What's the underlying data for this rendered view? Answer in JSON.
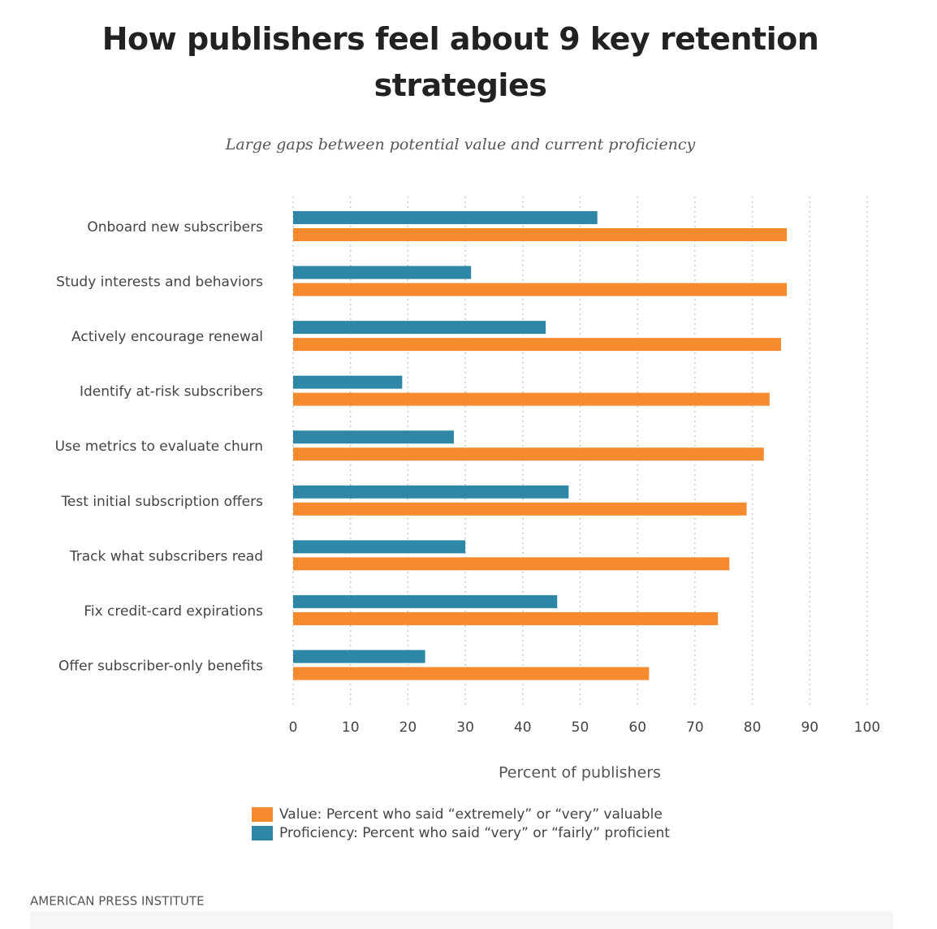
{
  "chart_data": {
    "type": "barh",
    "title": "How publishers feel about 9 key retention strategies",
    "subtitle": "Large gaps between potential value and current proficiency",
    "xlabel": "Percent of publishers",
    "categories": [
      "Onboard new subscribers",
      "Study interests and behaviors",
      "Actively encourage renewal",
      "Identify at-risk subscribers",
      "Use metrics to evaluate churn",
      "Test initial subscription offers",
      "Track what subscribers read",
      "Fix credit-card expirations",
      "Offer subscriber-only benefits"
    ],
    "series": [
      {
        "name": "Value: Percent who said “extremely” or “very” valuable",
        "color": "#f58a2f",
        "values": [
          86,
          86,
          85,
          83,
          82,
          79,
          76,
          74,
          62
        ]
      },
      {
        "name": "Proficiency: Percent who said “very” or “fairly” proficient",
        "color": "#2e87a6",
        "values": [
          53,
          31,
          44,
          19,
          28,
          48,
          30,
          46,
          23
        ]
      }
    ],
    "xlim": [
      0,
      100
    ],
    "xticks": [
      0,
      10,
      20,
      30,
      40,
      50,
      60,
      70,
      80,
      90,
      100
    ],
    "grid": true,
    "source": "AMERICAN PRESS INSTITUTE"
  }
}
